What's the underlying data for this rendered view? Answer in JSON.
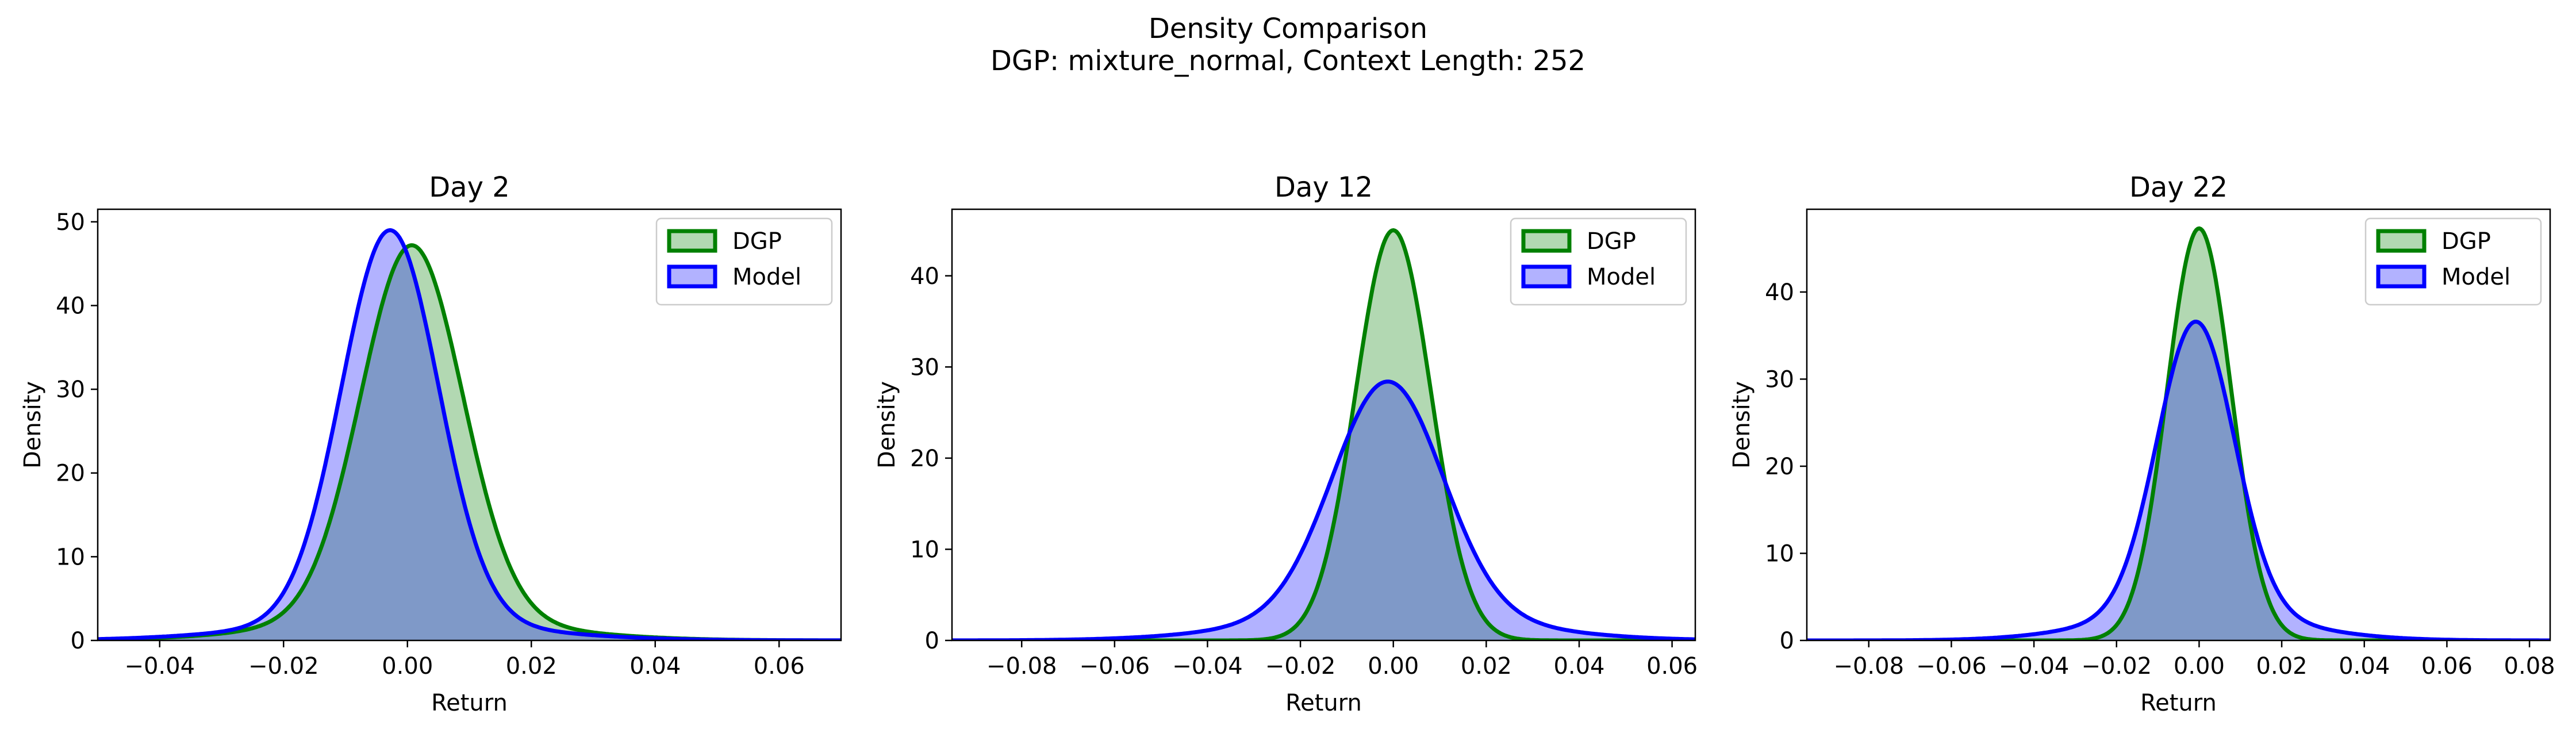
{
  "figure": {
    "suptitle": "Density Comparison",
    "subtitle": "DGP: mixture_normal, Context Length: 252"
  },
  "colors": {
    "dgp_line": "#008000",
    "dgp_fill": "#b2d8b2",
    "model_line": "#0000ff",
    "model_fill": "#b2b2ff",
    "overlap_fill": "#7f99c8"
  },
  "chart_data": [
    {
      "type": "area",
      "title": "Day 2",
      "xlabel": "Return",
      "ylabel": "Density",
      "xlim": [
        -0.05,
        0.07
      ],
      "ylim": [
        0,
        51.5
      ],
      "xticks": [
        -0.04,
        -0.02,
        0.0,
        0.02,
        0.04,
        0.06
      ],
      "xtick_labels": [
        "−0.04",
        "−0.02",
        "0.00",
        "0.02",
        "0.04",
        "0.06"
      ],
      "yticks": [
        0,
        10,
        20,
        30,
        40,
        50
      ],
      "ytick_labels": [
        "0",
        "10",
        "20",
        "30",
        "40",
        "50"
      ],
      "grid": false,
      "legend": "top-right",
      "series": [
        {
          "name": "DGP",
          "mu": 0.0007,
          "sigma": 0.0082,
          "peak": 47.2,
          "tail_w": 0.06,
          "tail_s": 2.4
        },
        {
          "name": "Model",
          "mu": -0.0028,
          "sigma": 0.0078,
          "peak": 49.0,
          "tail_w": 0.05,
          "tail_s": 2.6
        }
      ]
    },
    {
      "type": "area",
      "title": "Day 12",
      "xlabel": "Return",
      "ylabel": "Density",
      "xlim": [
        -0.095,
        0.065
      ],
      "ylim": [
        0,
        47.3
      ],
      "xticks": [
        -0.08,
        -0.06,
        -0.04,
        -0.02,
        0.0,
        0.02,
        0.04,
        0.06
      ],
      "xtick_labels": [
        "−0.08",
        "−0.06",
        "−0.04",
        "−0.02",
        "0.00",
        "0.02",
        "0.04",
        "0.06"
      ],
      "yticks": [
        0,
        10,
        20,
        30,
        40
      ],
      "ytick_labels": [
        "0",
        "10",
        "20",
        "30",
        "40"
      ],
      "grid": false,
      "legend": "top-right",
      "series": [
        {
          "name": "DGP",
          "mu": 0.0,
          "sigma": 0.0081,
          "peak": 45.0,
          "tail_w": 0.0,
          "tail_s": 1.0
        },
        {
          "name": "Model",
          "mu": -0.0012,
          "sigma": 0.0118,
          "peak": 28.4,
          "tail_w": 0.12,
          "tail_s": 2.2
        }
      ]
    },
    {
      "type": "area",
      "title": "Day 22",
      "xlabel": "Return",
      "ylabel": "Density",
      "xlim": [
        -0.095,
        0.085
      ],
      "ylim": [
        0,
        49.5
      ],
      "xticks": [
        -0.08,
        -0.06,
        -0.04,
        -0.02,
        0.0,
        0.02,
        0.04,
        0.06,
        0.08
      ],
      "xtick_labels": [
        "−0.08",
        "−0.06",
        "−0.04",
        "−0.02",
        "0.00",
        "0.02",
        "0.04",
        "0.06",
        "0.08"
      ],
      "yticks": [
        0,
        10,
        20,
        30,
        40
      ],
      "ytick_labels": [
        "0",
        "10",
        "20",
        "30",
        "40"
      ],
      "grid": false,
      "legend": "top-right",
      "series": [
        {
          "name": "DGP",
          "mu": 0.0,
          "sigma": 0.0078,
          "peak": 47.3,
          "tail_w": 0.0,
          "tail_s": 1.0
        },
        {
          "name": "Model",
          "mu": -0.0008,
          "sigma": 0.0093,
          "peak": 36.6,
          "tail_w": 0.1,
          "tail_s": 2.4
        }
      ]
    }
  ]
}
